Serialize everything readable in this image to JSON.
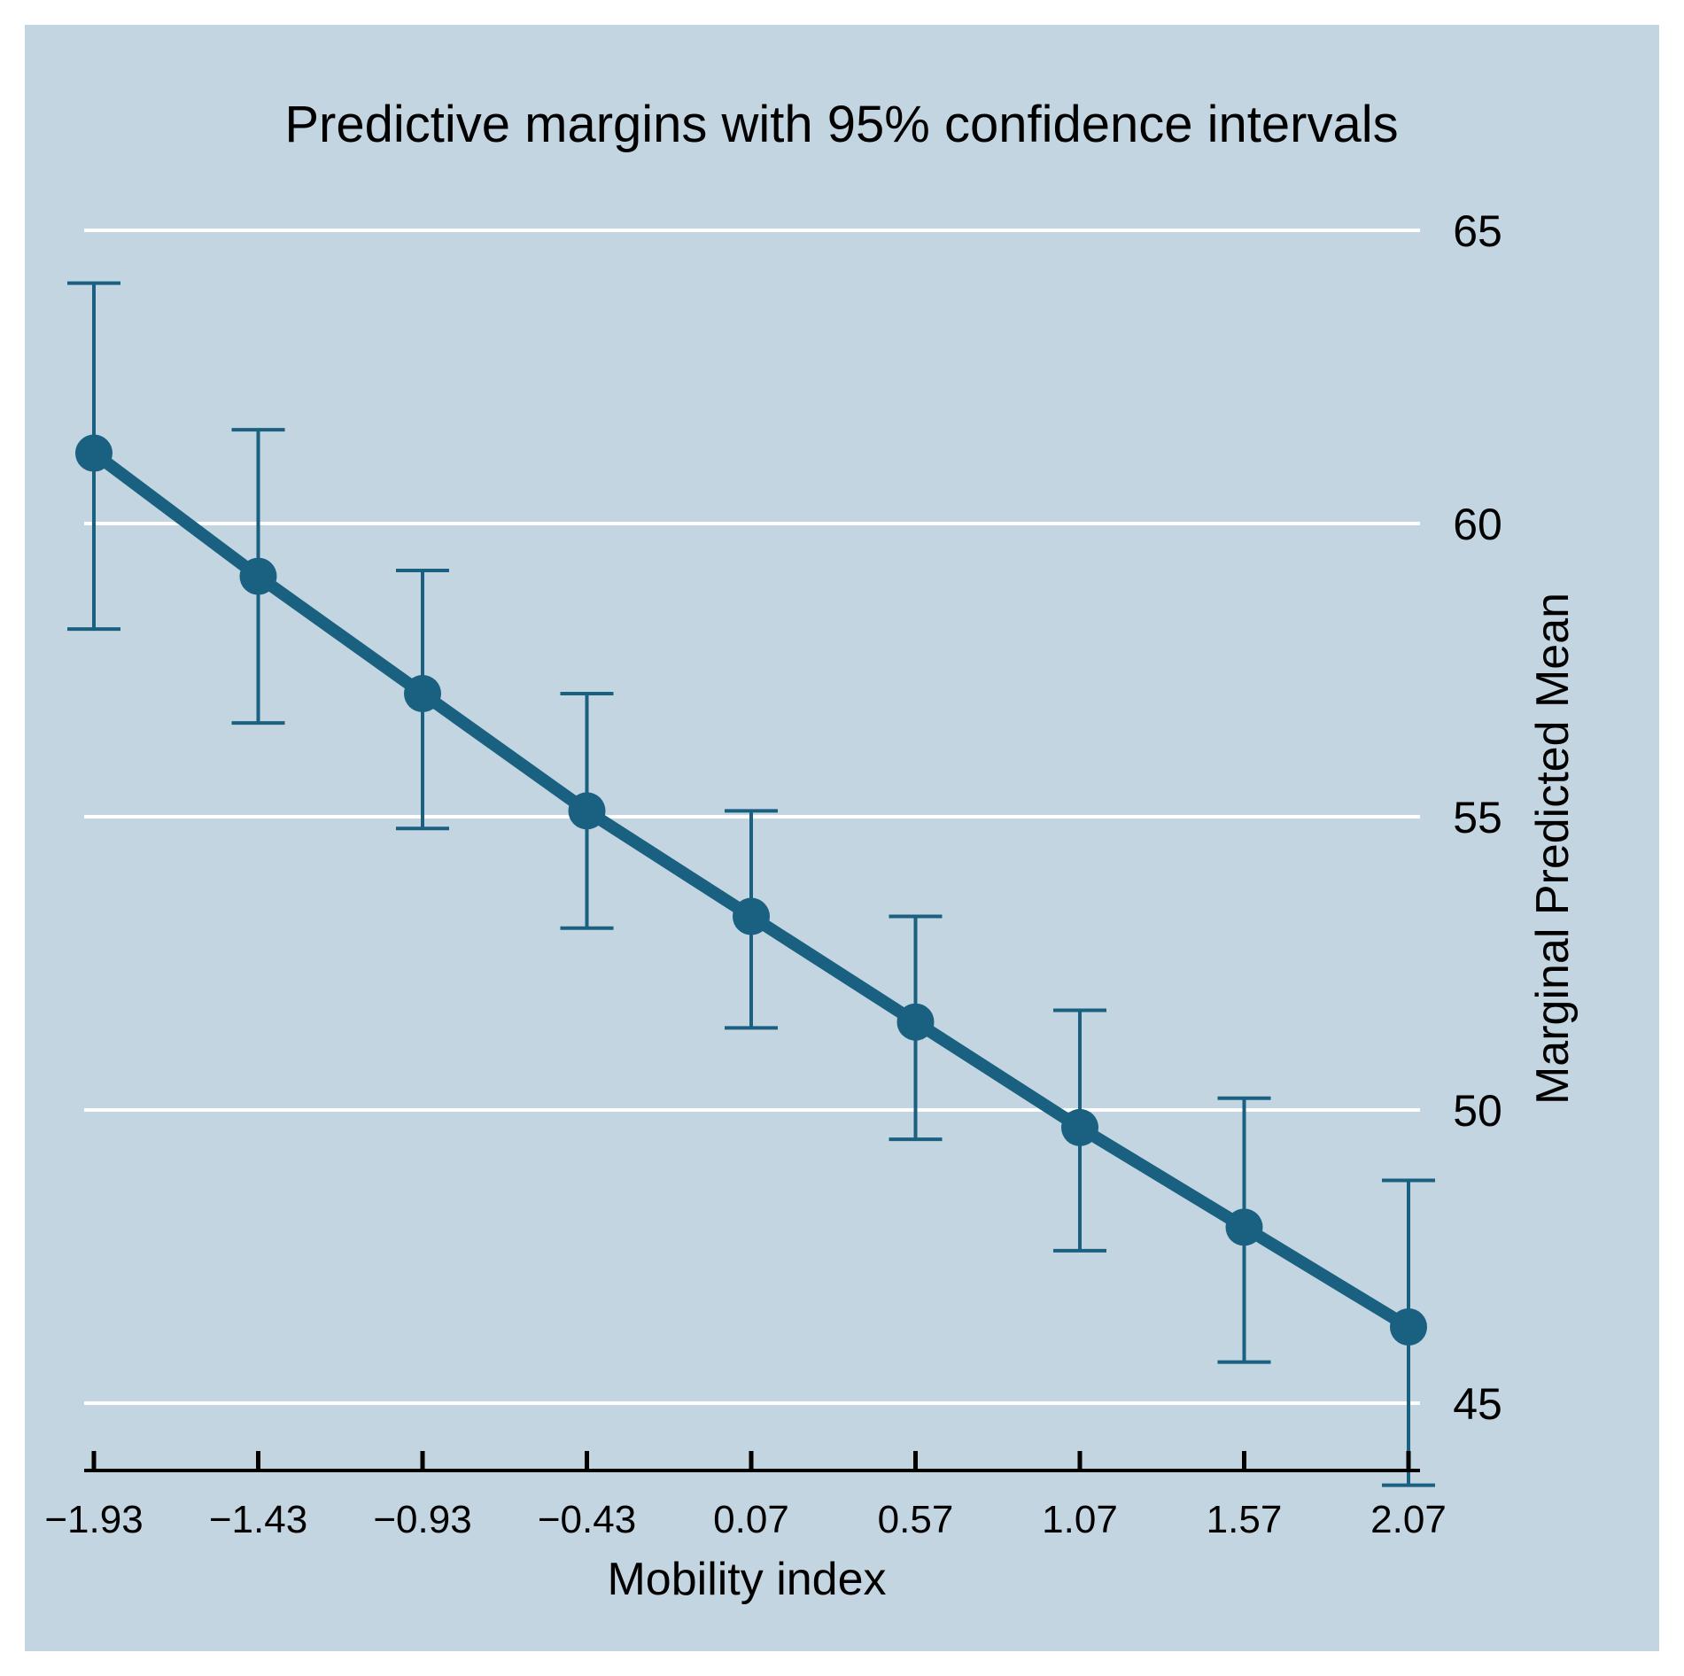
{
  "chart_data": {
    "type": "line",
    "title": "Predictive margins with 95% confidence intervals",
    "xlabel": "Mobility index",
    "ylabel": "Marginal Predicted Mean",
    "x": [
      -1.93,
      -1.43,
      -0.93,
      -0.43,
      0.07,
      0.57,
      1.07,
      1.57,
      2.07
    ],
    "x_tick_labels": [
      "−1.93",
      "−1.43",
      "−0.93",
      "−0.43",
      "0.07",
      "0.57",
      "1.07",
      "1.57",
      "2.07"
    ],
    "series": [
      {
        "name": "Marginal Predicted Mean",
        "values": [
          61.2,
          59.1,
          57.1,
          55.1,
          53.3,
          51.5,
          49.7,
          48.0,
          46.3
        ],
        "ci_lower": [
          58.2,
          56.6,
          54.8,
          53.1,
          51.4,
          49.5,
          47.6,
          45.7,
          43.6
        ],
        "ci_upper": [
          64.1,
          61.6,
          59.2,
          57.1,
          55.1,
          53.3,
          51.7,
          50.2,
          48.8
        ]
      }
    ],
    "y_ticks": [
      45,
      50,
      55,
      60,
      65
    ],
    "ylim": [
      43.6,
      65
    ],
    "xlim": [
      -1.93,
      2.07
    ],
    "grid": true,
    "y_axis_side": "right",
    "colors": {
      "background": "#c3d5e1",
      "series": "#1a6080",
      "grid": "#ffffff"
    }
  }
}
